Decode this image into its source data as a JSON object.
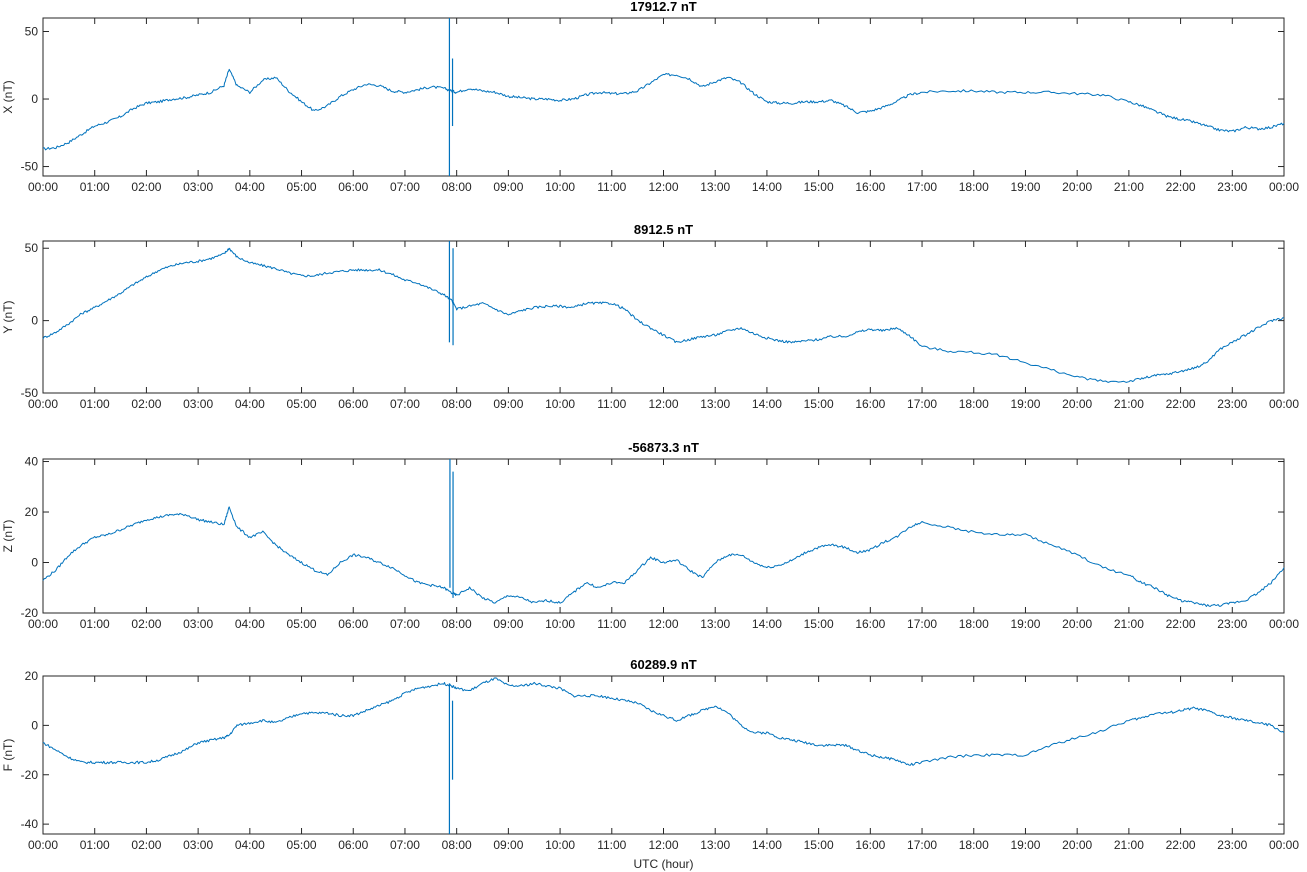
{
  "figure": {
    "xlabel": "UTC (hour)",
    "line_color": "#0072BD"
  },
  "chart_data": [
    {
      "type": "line",
      "title": "17912.7 nT",
      "ylabel": "X (nT)",
      "ylim": [
        -57,
        60
      ],
      "yticks": [
        -50,
        0,
        50
      ],
      "xlim": [
        0,
        24
      ],
      "xticks": [
        "00:00",
        "01:00",
        "02:00",
        "03:00",
        "04:00",
        "05:00",
        "06:00",
        "07:00",
        "08:00",
        "09:00",
        "10:00",
        "11:00",
        "12:00",
        "13:00",
        "14:00",
        "15:00",
        "16:00",
        "17:00",
        "18:00",
        "19:00",
        "20:00",
        "21:00",
        "22:00",
        "23:00",
        "00:00"
      ],
      "x": [
        0,
        0.25,
        0.5,
        0.75,
        1,
        1.25,
        1.5,
        1.75,
        2,
        2.25,
        2.5,
        2.75,
        3,
        3.25,
        3.5,
        3.6,
        3.75,
        4,
        4.25,
        4.5,
        4.75,
        5,
        5.25,
        5.5,
        5.75,
        6,
        6.25,
        6.5,
        6.75,
        7,
        7.25,
        7.5,
        7.75,
        7.9,
        8,
        8.25,
        8.5,
        8.75,
        9,
        9.25,
        9.5,
        9.75,
        10,
        10.25,
        10.5,
        10.75,
        11,
        11.25,
        11.5,
        11.75,
        12,
        12.25,
        12.5,
        12.75,
        13,
        13.25,
        13.5,
        13.75,
        14,
        14.25,
        14.5,
        14.75,
        15,
        15.25,
        15.5,
        15.75,
        16,
        16.25,
        16.5,
        16.75,
        17,
        17.5,
        18,
        18.5,
        19,
        19.5,
        20,
        20.5,
        21,
        21.25,
        21.5,
        21.75,
        22,
        22.25,
        22.5,
        22.75,
        23,
        23.25,
        23.5,
        23.75,
        24
      ],
      "y": [
        -37,
        -36,
        -32,
        -26,
        -20,
        -17,
        -13,
        -7,
        -3,
        -2,
        0,
        1,
        3,
        5,
        10,
        22,
        10,
        5,
        14,
        16,
        6,
        -2,
        -9,
        -5,
        2,
        7,
        11,
        10,
        6,
        5,
        7,
        9,
        8,
        6,
        5,
        8,
        6,
        5,
        2,
        1,
        0,
        0,
        -1,
        0,
        3,
        5,
        4,
        4,
        6,
        12,
        18,
        18,
        15,
        9,
        13,
        16,
        12,
        4,
        -2,
        -3,
        -3,
        -2,
        -2,
        -1,
        -5,
        -10,
        -9,
        -6,
        -2,
        3,
        5,
        6,
        6,
        5,
        5,
        5,
        4,
        3,
        -2,
        -5,
        -9,
        -13,
        -15,
        -17,
        -20,
        -23,
        -24,
        -21,
        -22,
        -21,
        -18
      ],
      "spikes": [
        {
          "x": 7.86,
          "ymin": -57,
          "ymax": 60
        },
        {
          "x": 7.92,
          "ymin": -20,
          "ymax": 30
        }
      ]
    },
    {
      "type": "line",
      "title": "8912.5 nT",
      "ylabel": "Y (nT)",
      "ylim": [
        -50,
        55
      ],
      "yticks": [
        -50,
        0,
        50
      ],
      "xlim": [
        0,
        24
      ],
      "xticks": [
        "00:00",
        "01:00",
        "02:00",
        "03:00",
        "04:00",
        "05:00",
        "06:00",
        "07:00",
        "08:00",
        "09:00",
        "10:00",
        "11:00",
        "12:00",
        "13:00",
        "14:00",
        "15:00",
        "16:00",
        "17:00",
        "18:00",
        "19:00",
        "20:00",
        "21:00",
        "22:00",
        "23:00",
        "00:00"
      ],
      "x": [
        0,
        0.25,
        0.5,
        0.75,
        1,
        1.25,
        1.5,
        1.75,
        2,
        2.25,
        2.5,
        2.75,
        3,
        3.25,
        3.5,
        3.6,
        3.75,
        4,
        4.25,
        4.5,
        4.75,
        5,
        5.25,
        5.5,
        5.75,
        6,
        6.25,
        6.5,
        6.75,
        7,
        7.25,
        7.5,
        7.75,
        7.9,
        8,
        8.25,
        8.5,
        8.75,
        9,
        9.25,
        9.5,
        9.75,
        10,
        10.25,
        10.5,
        10.75,
        11,
        11.25,
        11.5,
        11.75,
        12,
        12.25,
        12.5,
        12.75,
        13,
        13.25,
        13.5,
        13.75,
        14,
        14.25,
        14.5,
        14.75,
        15,
        15.25,
        15.5,
        15.75,
        16,
        16.25,
        16.5,
        16.75,
        17,
        17.5,
        18,
        18.5,
        19,
        19.5,
        20,
        20.5,
        21,
        21.25,
        21.5,
        21.75,
        22,
        22.25,
        22.5,
        22.75,
        23,
        23.25,
        23.5,
        23.75,
        24
      ],
      "y": [
        -12,
        -8,
        -2,
        5,
        9,
        14,
        19,
        25,
        30,
        35,
        38,
        40,
        41,
        43,
        46,
        50,
        44,
        40,
        38,
        36,
        33,
        31,
        31,
        33,
        34,
        35,
        35,
        35,
        32,
        28,
        26,
        22,
        18,
        14,
        8,
        10,
        12,
        8,
        4,
        7,
        9,
        10,
        10,
        9,
        12,
        12,
        12,
        8,
        0,
        -5,
        -10,
        -15,
        -13,
        -11,
        -10,
        -7,
        -5,
        -9,
        -12,
        -14,
        -15,
        -14,
        -13,
        -11,
        -11,
        -8,
        -6,
        -7,
        -5,
        -10,
        -18,
        -21,
        -22,
        -24,
        -29,
        -34,
        -39,
        -42,
        -42,
        -40,
        -38,
        -37,
        -35,
        -33,
        -29,
        -20,
        -15,
        -10,
        -5,
        0,
        2
      ],
      "spikes": [
        {
          "x": 7.86,
          "ymin": -15,
          "ymax": 55
        },
        {
          "x": 7.93,
          "ymin": -17,
          "ymax": 50
        }
      ]
    },
    {
      "type": "line",
      "title": "-56873.3 nT",
      "ylabel": "Z (nT)",
      "ylim": [
        -20,
        41
      ],
      "yticks": [
        -20,
        0,
        20,
        40
      ],
      "xlim": [
        0,
        24
      ],
      "xticks": [
        "00:00",
        "01:00",
        "02:00",
        "03:00",
        "04:00",
        "05:00",
        "06:00",
        "07:00",
        "08:00",
        "09:00",
        "10:00",
        "11:00",
        "12:00",
        "13:00",
        "14:00",
        "15:00",
        "16:00",
        "17:00",
        "18:00",
        "19:00",
        "20:00",
        "21:00",
        "22:00",
        "23:00",
        "00:00"
      ],
      "x": [
        0,
        0.25,
        0.5,
        0.75,
        1,
        1.25,
        1.5,
        1.75,
        2,
        2.25,
        2.5,
        2.75,
        3,
        3.25,
        3.5,
        3.6,
        3.75,
        4,
        4.25,
        4.5,
        4.75,
        5,
        5.25,
        5.5,
        5.75,
        6,
        6.25,
        6.5,
        6.75,
        7,
        7.25,
        7.5,
        7.75,
        7.9,
        8,
        8.25,
        8.5,
        8.75,
        9,
        9.25,
        9.5,
        9.75,
        10,
        10.25,
        10.5,
        10.75,
        11,
        11.25,
        11.5,
        11.75,
        12,
        12.25,
        12.5,
        12.75,
        13,
        13.25,
        13.5,
        13.75,
        14,
        14.25,
        14.5,
        14.75,
        15,
        15.25,
        15.5,
        15.75,
        16,
        16.25,
        16.5,
        16.75,
        17,
        17.5,
        18,
        18.5,
        19,
        19.5,
        20,
        20.5,
        21,
        21.25,
        21.5,
        21.75,
        22,
        22.25,
        22.5,
        22.75,
        23,
        23.25,
        23.5,
        23.75,
        24
      ],
      "y": [
        -7,
        -3,
        3,
        7,
        10,
        11,
        13,
        15,
        17,
        18,
        19,
        19,
        17,
        16,
        15,
        22,
        14,
        10,
        12,
        7,
        3,
        0,
        -3,
        -5,
        0,
        3,
        2,
        0,
        -2,
        -5,
        -8,
        -9,
        -10,
        -12,
        -13,
        -10,
        -14,
        -16,
        -13,
        -14,
        -16,
        -15,
        -16,
        -12,
        -8,
        -10,
        -8,
        -8,
        -3,
        2,
        0,
        1,
        -3,
        -6,
        0,
        3,
        3,
        0,
        -2,
        -1,
        1,
        4,
        6,
        7,
        6,
        4,
        5,
        8,
        10,
        14,
        16,
        14,
        12,
        11,
        11,
        7,
        3,
        -2,
        -5,
        -8,
        -10,
        -13,
        -15,
        -16,
        -17,
        -17,
        -16,
        -15,
        -12,
        -8,
        -2
      ],
      "spikes": [
        {
          "x": 7.87,
          "ymin": -10,
          "ymax": 41
        },
        {
          "x": 7.93,
          "ymin": -14,
          "ymax": 36
        }
      ]
    },
    {
      "type": "line",
      "title": "60289.9 nT",
      "ylabel": "F (nT)",
      "ylim": [
        -44,
        20
      ],
      "yticks": [
        -40,
        -20,
        0,
        20
      ],
      "xlim": [
        0,
        24
      ],
      "xticks": [
        "00:00",
        "01:00",
        "02:00",
        "03:00",
        "04:00",
        "05:00",
        "06:00",
        "07:00",
        "08:00",
        "09:00",
        "10:00",
        "11:00",
        "12:00",
        "13:00",
        "14:00",
        "15:00",
        "16:00",
        "17:00",
        "18:00",
        "19:00",
        "20:00",
        "21:00",
        "22:00",
        "23:00",
        "00:00"
      ],
      "x": [
        0,
        0.25,
        0.5,
        0.75,
        1,
        1.25,
        1.5,
        1.75,
        2,
        2.25,
        2.5,
        2.75,
        3,
        3.25,
        3.5,
        3.6,
        3.75,
        4,
        4.25,
        4.5,
        4.75,
        5,
        5.25,
        5.5,
        5.75,
        6,
        6.25,
        6.5,
        6.75,
        7,
        7.25,
        7.5,
        7.75,
        7.9,
        8,
        8.25,
        8.5,
        8.75,
        9,
        9.25,
        9.5,
        9.75,
        10,
        10.25,
        10.5,
        10.75,
        11,
        11.25,
        11.5,
        11.75,
        12,
        12.25,
        12.5,
        12.75,
        13,
        13.25,
        13.5,
        13.75,
        14,
        14.25,
        14.5,
        14.75,
        15,
        15.25,
        15.5,
        15.75,
        16,
        16.25,
        16.5,
        16.75,
        17,
        17.5,
        18,
        18.5,
        19,
        19.5,
        20,
        20.5,
        21,
        21.25,
        21.5,
        21.75,
        22,
        22.25,
        22.5,
        22.75,
        23,
        23.25,
        23.5,
        23.75,
        24
      ],
      "y": [
        -7,
        -10,
        -13,
        -15,
        -15,
        -15,
        -15,
        -15,
        -15,
        -14,
        -12,
        -10,
        -7,
        -6,
        -5,
        -4,
        0,
        1,
        2,
        1,
        3,
        5,
        5,
        5,
        4,
        4,
        6,
        8,
        10,
        13,
        15,
        16,
        17,
        16,
        15,
        14,
        17,
        19,
        16,
        16,
        17,
        16,
        15,
        12,
        12,
        12,
        11,
        10,
        9,
        6,
        4,
        2,
        4,
        6,
        8,
        5,
        0,
        -3,
        -3,
        -5,
        -6,
        -7,
        -8,
        -8,
        -8,
        -10,
        -12,
        -13,
        -14,
        -16,
        -15,
        -13,
        -12,
        -12,
        -12,
        -8,
        -5,
        -2,
        2,
        3,
        5,
        5,
        6,
        7,
        6,
        4,
        3,
        2,
        1,
        0,
        -3
      ],
      "spikes": [
        {
          "x": 7.86,
          "ymin": -44,
          "ymax": 17
        },
        {
          "x": 7.92,
          "ymin": -22,
          "ymax": 10
        }
      ]
    }
  ]
}
